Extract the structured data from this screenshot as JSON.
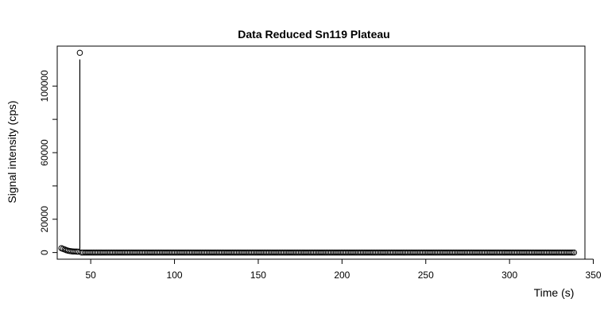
{
  "chart_data": {
    "type": "scatter",
    "title": "Data Reduced Sn119 Plateau",
    "xlabel": "Time (s)",
    "ylabel": "Signal intensity (cps)",
    "xlim": [
      30,
      345
    ],
    "ylim": [
      -4000,
      124000
    ],
    "xticks": [
      50,
      100,
      150,
      200,
      250,
      300,
      350
    ],
    "xtick_labels": [
      "50",
      "100",
      "150",
      "200",
      "250",
      "300",
      "350"
    ],
    "yticks": [
      0,
      20000,
      40000,
      60000,
      80000,
      100000
    ],
    "ytick_labels": [
      "0",
      "20000",
      "",
      "60000",
      "",
      "100000"
    ],
    "grid": false,
    "series": [
      {
        "x": [
          32.5,
          33.5,
          34.5,
          35.5,
          36.5,
          37.5,
          38.5,
          39.5,
          40.5,
          41.5,
          42.5,
          43.5
        ],
        "y": [
          2600,
          2200,
          1800,
          1400,
          1100,
          900,
          750,
          650,
          600,
          550,
          500,
          120000
        ]
      },
      {
        "x_start": 44.5,
        "x_end": 338.5,
        "x_step": 1,
        "y_constant": 0
      }
    ],
    "annotations": [
      {
        "type": "vertical-line",
        "x": 43.5,
        "y_from": 1500,
        "y_to": 116000
      }
    ]
  }
}
